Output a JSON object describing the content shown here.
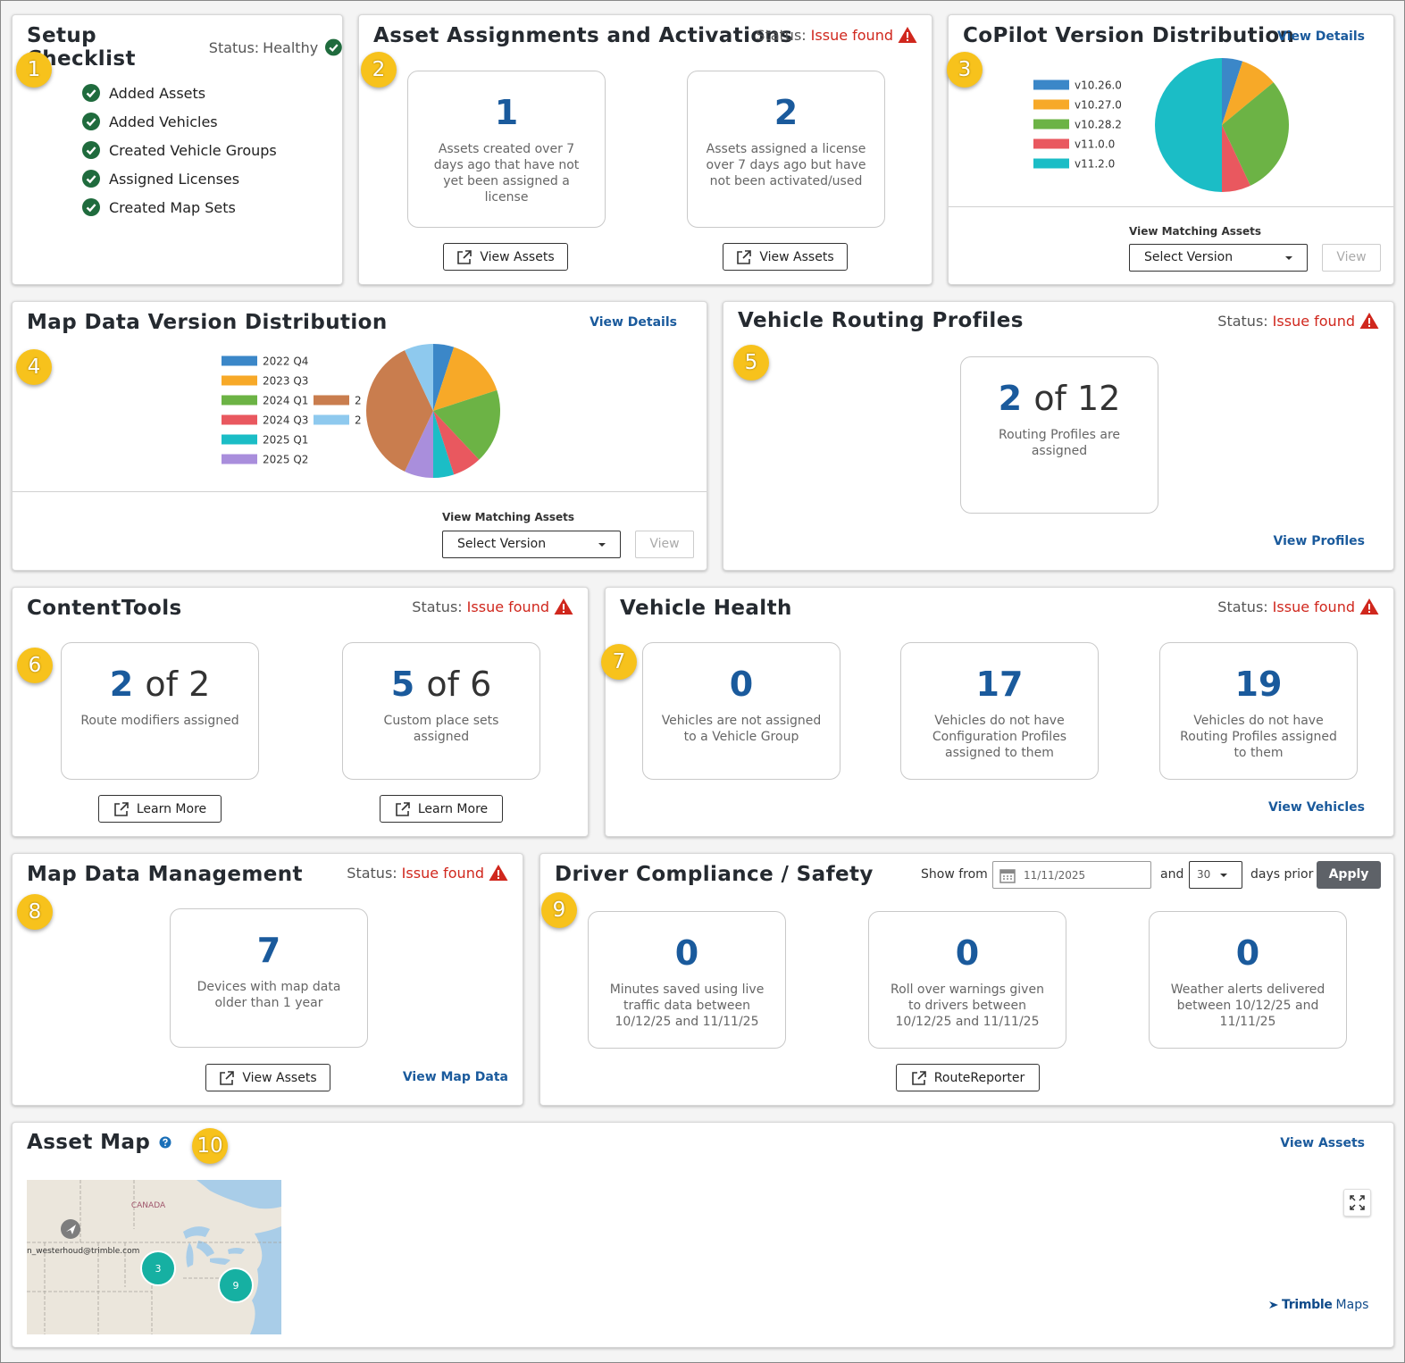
{
  "badges": [
    1,
    2,
    3,
    4,
    5,
    6,
    7,
    8,
    9,
    10
  ],
  "setup_checklist": {
    "title": "Setup Checklist",
    "status_label": "Status:",
    "status": "Healthy",
    "items": [
      "Added Assets",
      "Added Vehicles",
      "Created Vehicle Groups",
      "Assigned Licenses",
      "Created Map Sets"
    ]
  },
  "asset_assignments": {
    "title": "Asset Assignments and Activations",
    "status_label": "Status:",
    "status": "Issue found",
    "cards": [
      {
        "value": 1,
        "text": "Assets created over 7 days ago that have not yet been assigned a license",
        "button": "View Assets"
      },
      {
        "value": 2,
        "text": "Assets assigned a license over 7 days ago but have not been activated/used",
        "button": "View Assets"
      }
    ]
  },
  "copilot": {
    "title": "CoPilot Version Distribution",
    "link": "View Details",
    "pie": {
      "type": "pie",
      "categories": [
        "v10.26.0",
        "v10.27.0",
        "v10.28.2",
        "v11.0.0",
        "v11.2.0"
      ],
      "values": [
        5,
        9,
        29,
        7,
        50
      ],
      "colors": [
        "#3b87c8",
        "#f7a928",
        "#6cb345",
        "#e9585f",
        "#1bbdc6"
      ]
    },
    "matching_label": "View Matching Assets",
    "select": "Select Version",
    "button": "View"
  },
  "map_data_version": {
    "title": "Map Data Version Distribution",
    "link": "View Details",
    "pie": {
      "type": "pie",
      "categories": [
        "2022 Q4",
        "2023 Q3",
        "2024 Q1",
        "2024 Q3",
        "2025 Q1",
        "2025 Q2",
        "2",
        "2"
      ],
      "values": [
        5,
        15,
        18,
        7,
        5,
        7,
        36,
        7
      ],
      "colors": [
        "#3b87c8",
        "#f7a928",
        "#6cb345",
        "#e9585f",
        "#1bbdc6",
        "#a98edc",
        "#c97d4e",
        "#8ec9ee"
      ]
    },
    "matching_label": "View Matching Assets",
    "select": "Select Version",
    "button": "View"
  },
  "routing_profiles": {
    "title": "Vehicle Routing Profiles",
    "status_label": "Status:",
    "status": "Issue found",
    "card": {
      "value": 2,
      "of": "of 12",
      "text": "Routing Profiles are assigned"
    },
    "link": "View Profiles"
  },
  "content_tools": {
    "title": "ContentTools",
    "status_label": "Status:",
    "status": "Issue found",
    "cards": [
      {
        "value": 2,
        "of": "of 2",
        "text": "Route modifiers assigned",
        "button": "Learn More"
      },
      {
        "value": 5,
        "of": "of 6",
        "text": "Custom place sets assigned",
        "button": "Learn More"
      }
    ]
  },
  "vehicle_health": {
    "title": "Vehicle Health",
    "status_label": "Status:",
    "status": "Issue found",
    "cards": [
      {
        "value": 0,
        "text": "Vehicles are not assigned to a Vehicle Group"
      },
      {
        "value": 17,
        "text": "Vehicles do not have Configuration Profiles assigned to them"
      },
      {
        "value": 19,
        "text": "Vehicles do not have Routing Profiles assigned to them"
      }
    ],
    "link": "View Vehicles"
  },
  "map_data_management": {
    "title": "Map Data Management",
    "status_label": "Status:",
    "status": "Issue found",
    "card": {
      "value": 7,
      "text": "Devices with map data older than 1 year"
    },
    "button": "View Assets",
    "link": "View Map Data"
  },
  "driver_compliance": {
    "title": "Driver Compliance / Safety",
    "show_from": "Show from",
    "date": "11/11/2025",
    "and": "and",
    "days": 30,
    "days_prior": "days prior",
    "apply": "Apply",
    "cards": [
      {
        "value": 0,
        "text": "Minutes saved using live traffic data between 10/12/25 and 11/11/25"
      },
      {
        "value": 0,
        "text": "Roll over warnings given to drivers between 10/12/25 and 11/11/25"
      },
      {
        "value": 0,
        "text": "Weather alerts delivered between 10/12/25 and 11/11/25"
      }
    ],
    "button": "RouteReporter"
  },
  "asset_map": {
    "title": "Asset Map",
    "link": "View Assets",
    "map": {
      "country": "CANADA",
      "user": "n_westerhoud@trimble.com",
      "clusters": [
        3,
        9
      ]
    },
    "logo_brand": "Trimble",
    "logo_product": "Maps"
  }
}
